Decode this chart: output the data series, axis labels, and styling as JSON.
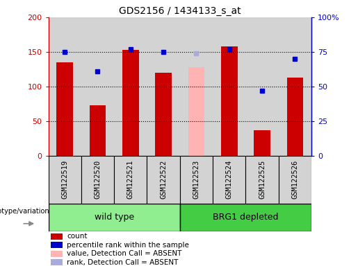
{
  "title": "GDS2156 / 1434133_s_at",
  "samples": [
    "GSM122519",
    "GSM122520",
    "GSM122521",
    "GSM122522",
    "GSM122523",
    "GSM122524",
    "GSM122525",
    "GSM122526"
  ],
  "count_values": [
    135,
    73,
    153,
    120,
    null,
    158,
    37,
    113
  ],
  "count_absent": [
    null,
    null,
    null,
    null,
    128,
    null,
    null,
    null
  ],
  "rank_values": [
    75,
    61,
    77,
    75,
    null,
    77,
    47,
    70
  ],
  "rank_absent": [
    null,
    null,
    null,
    null,
    74,
    null,
    null,
    null
  ],
  "left_ylim": [
    0,
    200
  ],
  "right_ylim": [
    0,
    100
  ],
  "left_yticks": [
    0,
    50,
    100,
    150,
    200
  ],
  "right_yticks": [
    0,
    25,
    50,
    75,
    100
  ],
  "right_yticklabels": [
    "0",
    "25",
    "50",
    "75",
    "100%"
  ],
  "left_yticklabels": [
    "0",
    "50",
    "100",
    "150",
    "200"
  ],
  "group1_label": "wild type",
  "group2_label": "BRG1 depleted",
  "group1_color": "#90ee90",
  "group2_color": "#44cc44",
  "count_color": "#cc0000",
  "count_absent_color": "#ffb3b3",
  "rank_color": "#0000cc",
  "rank_absent_color": "#aaaadd",
  "cell_bg_color": "#d3d3d3",
  "genotype_label": "genotype/variation",
  "legend_items": [
    {
      "label": "count",
      "color": "#cc0000"
    },
    {
      "label": "percentile rank within the sample",
      "color": "#0000cc"
    },
    {
      "label": "value, Detection Call = ABSENT",
      "color": "#ffb3b3"
    },
    {
      "label": "rank, Detection Call = ABSENT",
      "color": "#aaaadd"
    }
  ]
}
